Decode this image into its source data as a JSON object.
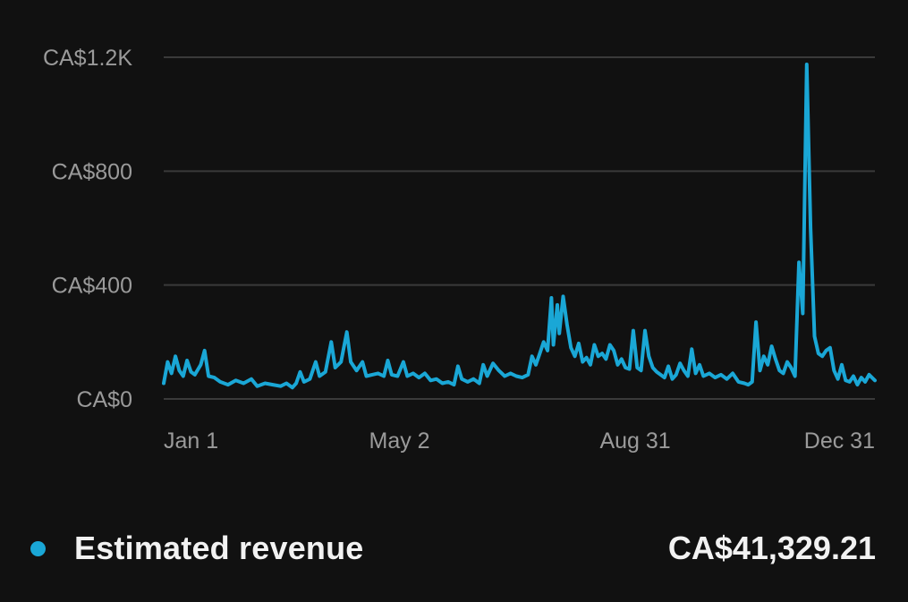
{
  "colors": {
    "background": "#111111",
    "series": "#1aa7d6",
    "grid": "#3a3a3a",
    "tick_text": "#9a9a9a",
    "legend_text": "#f2f2f2"
  },
  "legend": {
    "label": "Estimated revenue",
    "total": "CA$41,329.21",
    "dot_icon": "legend-dot-icon"
  },
  "chart_data": {
    "type": "line",
    "title": "",
    "xlabel": "",
    "ylabel": "",
    "grid": true,
    "ylim": [
      0,
      1200
    ],
    "xlim": [
      "2023-01-01",
      "2024-01-01"
    ],
    "y_ticks": [
      {
        "value": 0,
        "label": "CA$0"
      },
      {
        "value": 400,
        "label": "CA$400"
      },
      {
        "value": 800,
        "label": "CA$800"
      },
      {
        "value": 1200,
        "label": "CA$1.2K"
      }
    ],
    "x_ticks": [
      {
        "date": "2023-01-01",
        "label": "Jan 1"
      },
      {
        "date": "2023-05-02",
        "label": "May 2"
      },
      {
        "date": "2023-08-31",
        "label": "Aug 31"
      },
      {
        "date": "2023-12-31",
        "label": "Dec 31"
      }
    ],
    "series": [
      {
        "name": "Estimated revenue",
        "points": [
          [
            "2023-01-01",
            55
          ],
          [
            "2023-01-03",
            130
          ],
          [
            "2023-01-05",
            90
          ],
          [
            "2023-01-07",
            150
          ],
          [
            "2023-01-09",
            100
          ],
          [
            "2023-01-11",
            80
          ],
          [
            "2023-01-13",
            135
          ],
          [
            "2023-01-15",
            95
          ],
          [
            "2023-01-17",
            85
          ],
          [
            "2023-01-20",
            120
          ],
          [
            "2023-01-22",
            170
          ],
          [
            "2023-01-24",
            80
          ],
          [
            "2023-01-27",
            75
          ],
          [
            "2023-01-30",
            60
          ],
          [
            "2023-02-03",
            50
          ],
          [
            "2023-02-07",
            65
          ],
          [
            "2023-02-11",
            55
          ],
          [
            "2023-02-15",
            70
          ],
          [
            "2023-02-18",
            45
          ],
          [
            "2023-02-22",
            55
          ],
          [
            "2023-02-26",
            50
          ],
          [
            "2023-03-02",
            45
          ],
          [
            "2023-03-05",
            55
          ],
          [
            "2023-03-08",
            40
          ],
          [
            "2023-03-10",
            55
          ],
          [
            "2023-03-12",
            95
          ],
          [
            "2023-03-14",
            60
          ],
          [
            "2023-03-17",
            70
          ],
          [
            "2023-03-20",
            130
          ],
          [
            "2023-03-22",
            80
          ],
          [
            "2023-03-25",
            95
          ],
          [
            "2023-03-28",
            200
          ],
          [
            "2023-03-30",
            110
          ],
          [
            "2023-04-02",
            130
          ],
          [
            "2023-04-05",
            235
          ],
          [
            "2023-04-07",
            130
          ],
          [
            "2023-04-10",
            100
          ],
          [
            "2023-04-13",
            130
          ],
          [
            "2023-04-15",
            80
          ],
          [
            "2023-04-18",
            85
          ],
          [
            "2023-04-21",
            90
          ],
          [
            "2023-04-24",
            80
          ],
          [
            "2023-04-26",
            135
          ],
          [
            "2023-04-28",
            85
          ],
          [
            "2023-05-01",
            80
          ],
          [
            "2023-05-04",
            130
          ],
          [
            "2023-05-06",
            80
          ],
          [
            "2023-05-09",
            90
          ],
          [
            "2023-05-12",
            75
          ],
          [
            "2023-05-15",
            90
          ],
          [
            "2023-05-18",
            65
          ],
          [
            "2023-05-21",
            70
          ],
          [
            "2023-05-24",
            55
          ],
          [
            "2023-05-27",
            60
          ],
          [
            "2023-05-30",
            50
          ],
          [
            "2023-06-01",
            115
          ],
          [
            "2023-06-03",
            70
          ],
          [
            "2023-06-06",
            60
          ],
          [
            "2023-06-09",
            70
          ],
          [
            "2023-06-12",
            55
          ],
          [
            "2023-06-14",
            120
          ],
          [
            "2023-06-16",
            80
          ],
          [
            "2023-06-19",
            125
          ],
          [
            "2023-06-22",
            100
          ],
          [
            "2023-06-25",
            80
          ],
          [
            "2023-06-28",
            90
          ],
          [
            "2023-07-01",
            80
          ],
          [
            "2023-07-04",
            75
          ],
          [
            "2023-07-07",
            85
          ],
          [
            "2023-07-09",
            150
          ],
          [
            "2023-07-11",
            120
          ],
          [
            "2023-07-13",
            160
          ],
          [
            "2023-07-15",
            200
          ],
          [
            "2023-07-17",
            170
          ],
          [
            "2023-07-19",
            355
          ],
          [
            "2023-07-20",
            190
          ],
          [
            "2023-07-22",
            330
          ],
          [
            "2023-07-23",
            230
          ],
          [
            "2023-07-25",
            360
          ],
          [
            "2023-07-27",
            260
          ],
          [
            "2023-07-29",
            180
          ],
          [
            "2023-07-31",
            150
          ],
          [
            "2023-08-02",
            195
          ],
          [
            "2023-08-04",
            130
          ],
          [
            "2023-08-06",
            145
          ],
          [
            "2023-08-08",
            120
          ],
          [
            "2023-08-10",
            190
          ],
          [
            "2023-08-12",
            150
          ],
          [
            "2023-08-14",
            160
          ],
          [
            "2023-08-16",
            140
          ],
          [
            "2023-08-18",
            190
          ],
          [
            "2023-08-20",
            170
          ],
          [
            "2023-08-22",
            120
          ],
          [
            "2023-08-24",
            140
          ],
          [
            "2023-08-26",
            110
          ],
          [
            "2023-08-28",
            105
          ],
          [
            "2023-08-30",
            240
          ],
          [
            "2023-09-01",
            110
          ],
          [
            "2023-09-03",
            100
          ],
          [
            "2023-09-05",
            240
          ],
          [
            "2023-09-07",
            150
          ],
          [
            "2023-09-09",
            110
          ],
          [
            "2023-09-11",
            95
          ],
          [
            "2023-09-13",
            85
          ],
          [
            "2023-09-15",
            75
          ],
          [
            "2023-09-17",
            115
          ],
          [
            "2023-09-19",
            70
          ],
          [
            "2023-09-21",
            85
          ],
          [
            "2023-09-23",
            125
          ],
          [
            "2023-09-25",
            100
          ],
          [
            "2023-09-27",
            80
          ],
          [
            "2023-09-29",
            175
          ],
          [
            "2023-10-01",
            90
          ],
          [
            "2023-10-03",
            120
          ],
          [
            "2023-10-05",
            80
          ],
          [
            "2023-10-08",
            90
          ],
          [
            "2023-10-11",
            75
          ],
          [
            "2023-10-14",
            85
          ],
          [
            "2023-10-17",
            70
          ],
          [
            "2023-10-20",
            90
          ],
          [
            "2023-10-23",
            60
          ],
          [
            "2023-10-26",
            55
          ],
          [
            "2023-10-28",
            50
          ],
          [
            "2023-10-30",
            60
          ],
          [
            "2023-11-01",
            270
          ],
          [
            "2023-11-03",
            100
          ],
          [
            "2023-11-05",
            150
          ],
          [
            "2023-11-07",
            120
          ],
          [
            "2023-11-09",
            185
          ],
          [
            "2023-11-11",
            140
          ],
          [
            "2023-11-13",
            100
          ],
          [
            "2023-11-15",
            90
          ],
          [
            "2023-11-17",
            130
          ],
          [
            "2023-11-19",
            110
          ],
          [
            "2023-11-21",
            80
          ],
          [
            "2023-11-23",
            480
          ],
          [
            "2023-11-25",
            300
          ],
          [
            "2023-11-27",
            1175
          ],
          [
            "2023-11-29",
            600
          ],
          [
            "2023-12-01",
            220
          ],
          [
            "2023-12-03",
            160
          ],
          [
            "2023-12-05",
            150
          ],
          [
            "2023-12-07",
            170
          ],
          [
            "2023-12-09",
            180
          ],
          [
            "2023-12-11",
            100
          ],
          [
            "2023-12-13",
            70
          ],
          [
            "2023-12-15",
            120
          ],
          [
            "2023-12-17",
            65
          ],
          [
            "2023-12-19",
            60
          ],
          [
            "2023-12-21",
            80
          ],
          [
            "2023-12-23",
            50
          ],
          [
            "2023-12-25",
            75
          ],
          [
            "2023-12-27",
            60
          ],
          [
            "2023-12-29",
            85
          ],
          [
            "2024-01-01",
            65
          ]
        ]
      }
    ]
  }
}
